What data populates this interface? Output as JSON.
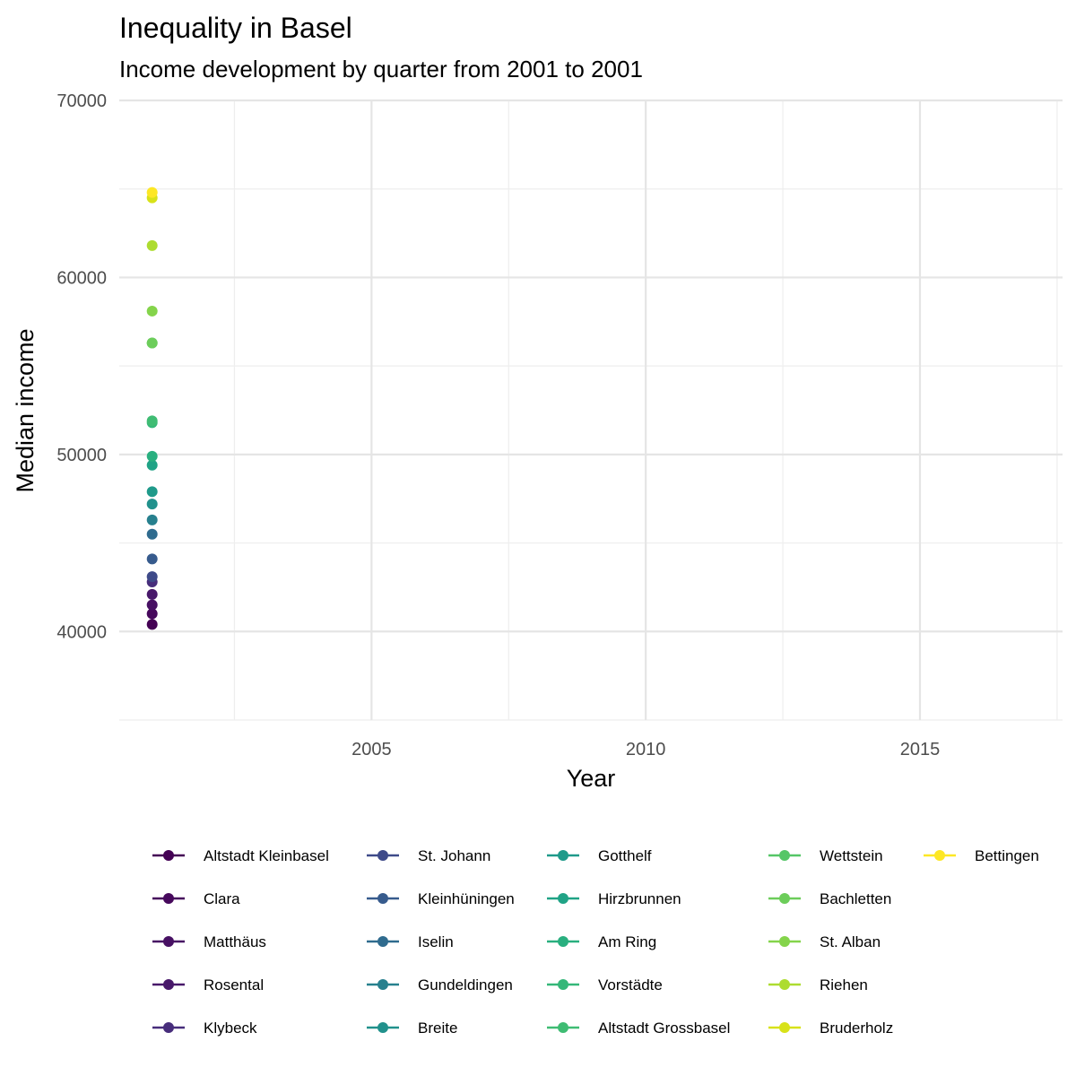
{
  "chart_data": {
    "type": "scatter",
    "title": "Inequality in Basel",
    "subtitle": "Income development by quarter from 2001 to 2001",
    "xlabel": "Year",
    "ylabel": "Median income",
    "xlim": [
      2000.4,
      2017.6
    ],
    "ylim": [
      35000,
      70000
    ],
    "x_ticks": [
      2005,
      2010,
      2015
    ],
    "y_ticks": [
      40000,
      50000,
      60000,
      70000
    ],
    "grid": true,
    "legend_position": "bottom",
    "series": [
      {
        "name": "Altstadt Kleinbasel",
        "color": "#440154",
        "x": [
          2001
        ],
        "values": [
          40400
        ]
      },
      {
        "name": "Clara",
        "color": "#46085c",
        "x": [
          2001
        ],
        "values": [
          41000
        ]
      },
      {
        "name": "Matthäus",
        "color": "#471063",
        "x": [
          2001
        ],
        "values": [
          41500
        ]
      },
      {
        "name": "Rosental",
        "color": "#48186a",
        "x": [
          2001
        ],
        "values": [
          42100
        ]
      },
      {
        "name": "Klybeck",
        "color": "#472d7b",
        "x": [
          2001
        ],
        "values": [
          42800
        ]
      },
      {
        "name": "St. Johann",
        "color": "#3e4a89",
        "x": [
          2001
        ],
        "values": [
          43100
        ]
      },
      {
        "name": "Kleinhüningen",
        "color": "#375b8d",
        "x": [
          2001
        ],
        "values": [
          44100
        ]
      },
      {
        "name": "Iselin",
        "color": "#2f6b8e",
        "x": [
          2001
        ],
        "values": [
          45500
        ]
      },
      {
        "name": "Gundeldingen",
        "color": "#27808e",
        "x": [
          2001
        ],
        "values": [
          46300
        ]
      },
      {
        "name": "Breite",
        "color": "#21918c",
        "x": [
          2001
        ],
        "values": [
          47200
        ]
      },
      {
        "name": "Gotthelf",
        "color": "#1f9a8a",
        "x": [
          2001
        ],
        "values": [
          47900
        ]
      },
      {
        "name": "Hirzbrunnen",
        "color": "#20a386",
        "x": [
          2001
        ],
        "values": [
          49400
        ]
      },
      {
        "name": "Am Ring",
        "color": "#29af7f",
        "x": [
          2001
        ],
        "values": [
          49900
        ]
      },
      {
        "name": "Vorstädte",
        "color": "#35b779",
        "x": [
          2001
        ],
        "values": [
          51800
        ]
      },
      {
        "name": "Altstadt Grossbasel",
        "color": "#3fbc73",
        "x": [
          2001
        ],
        "values": [
          51900
        ]
      },
      {
        "name": "Wettstein",
        "color": "#55c667",
        "x": [
          2001
        ],
        "values": [
          56300
        ]
      },
      {
        "name": "Bachletten",
        "color": "#6ccd5a",
        "x": [
          2001
        ],
        "values": [
          56300
        ]
      },
      {
        "name": "St. Alban",
        "color": "#84d44b",
        "x": [
          2001
        ],
        "values": [
          58100
        ]
      },
      {
        "name": "Riehen",
        "color": "#addc30",
        "x": [
          2001
        ],
        "values": [
          61800
        ]
      },
      {
        "name": "Bruderholz",
        "color": "#d8e219",
        "x": [
          2001
        ],
        "values": [
          64500
        ]
      },
      {
        "name": "Bettingen",
        "color": "#fde725",
        "x": [
          2001
        ],
        "values": [
          64800
        ]
      }
    ]
  }
}
